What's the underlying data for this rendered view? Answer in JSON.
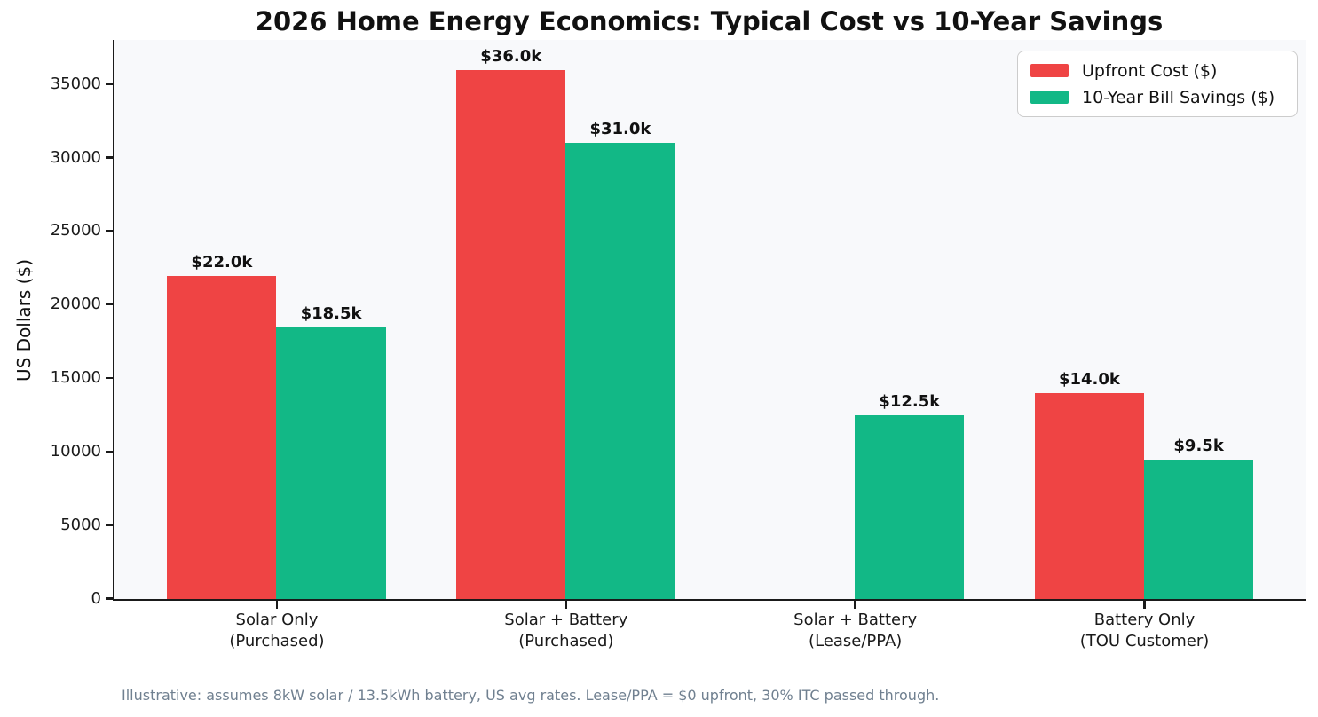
{
  "chart_data": {
    "type": "bar",
    "title": "2026 Home Energy Economics: Typical Cost vs 10-Year Savings",
    "ylabel": "US Dollars ($)",
    "xlabel": "",
    "footnote": "Illustrative: assumes 8kW solar / 13.5kWh battery, US avg rates. Lease/PPA = $0 upfront, 30% ITC passed through.",
    "categories": [
      "Solar Only\n(Purchased)",
      "Solar + Battery\n(Purchased)",
      "Solar + Battery\n(Lease/PPA)",
      "Battery Only\n(TOU Customer)"
    ],
    "series": [
      {
        "name": "Upfront Cost ($)",
        "color": "#ef4444",
        "values": [
          22000,
          36000,
          0,
          14000
        ],
        "labels": [
          "$22.0k",
          "$36.0k",
          "",
          "$14.0k"
        ]
      },
      {
        "name": "10-Year Bill Savings ($)",
        "color": "#12b886",
        "values": [
          18500,
          31000,
          12500,
          9500
        ],
        "labels": [
          "$18.5k",
          "$31.0k",
          "$12.5k",
          "$9.5k"
        ]
      }
    ],
    "yticks": [
      0,
      5000,
      10000,
      15000,
      20000,
      25000,
      30000,
      35000
    ],
    "ylim": [
      0,
      38000
    ],
    "legend_position": "upper right",
    "grid": false,
    "colors": {
      "plot_background": "#f8f9fb",
      "spine": "#1a1a1a",
      "footnote_text": "#708090",
      "label_text": "#111111"
    }
  }
}
